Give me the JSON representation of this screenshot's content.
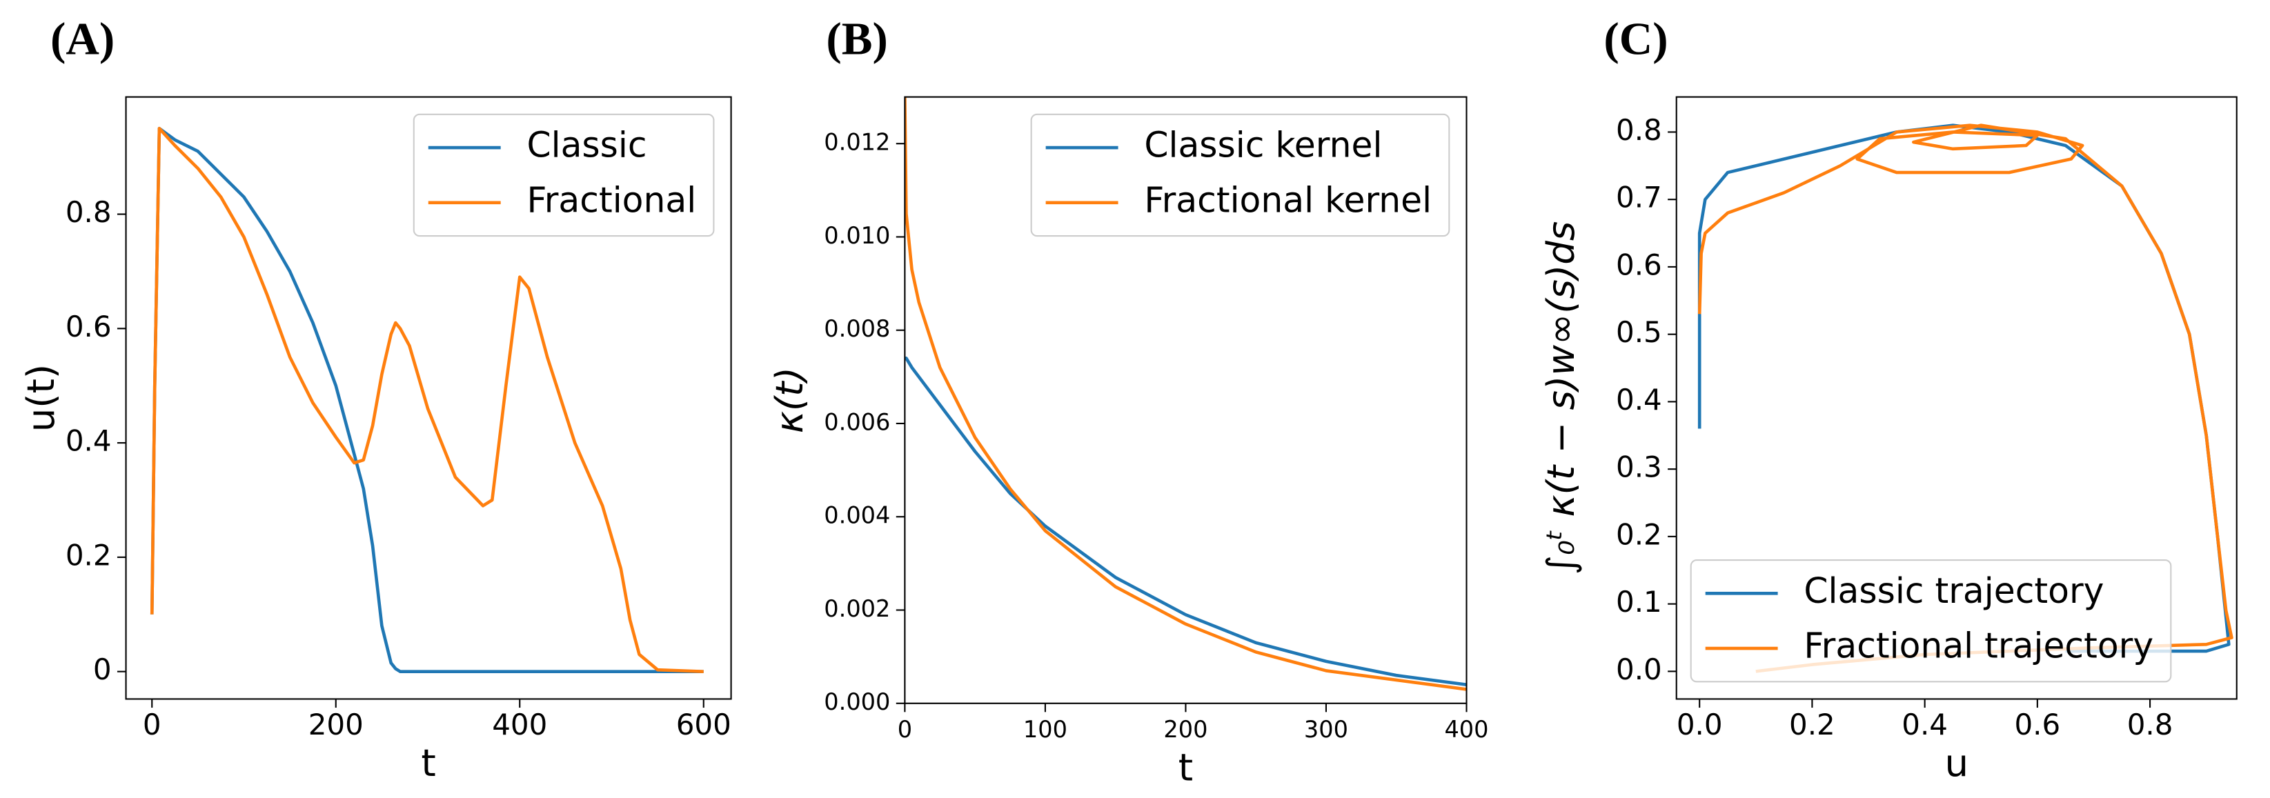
{
  "chart_data": [
    {
      "type": "line",
      "panel_label": "(A)",
      "xlabel": "t",
      "ylabel": "u(t)",
      "xlim": [
        -28.3,
        629.9
      ],
      "ylim": [
        -0.048,
        1.005
      ],
      "xticks": [
        0,
        200,
        400,
        600
      ],
      "yticks": [
        0,
        0.2,
        0.4,
        0.6,
        0.8
      ],
      "x": [
        0,
        3,
        8,
        25,
        50,
        75,
        100,
        125,
        150,
        175,
        200,
        220,
        230,
        240,
        250,
        260,
        265,
        270,
        280,
        300,
        330,
        360,
        370,
        385,
        400,
        410,
        430,
        460,
        490,
        510,
        520,
        530,
        550,
        600
      ],
      "series": [
        {
          "name": "Classic",
          "color": "#1f77b4",
          "values": [
            0.1,
            0.5,
            0.95,
            0.93,
            0.91,
            0.87,
            0.83,
            0.77,
            0.7,
            0.61,
            0.5,
            0.38,
            0.32,
            0.22,
            0.08,
            0.015,
            0.005,
            0,
            0,
            0,
            0,
            0,
            0,
            0,
            0,
            0,
            0,
            0,
            0,
            0,
            0,
            0,
            0,
            0
          ]
        },
        {
          "name": "Fractional",
          "color": "#ff7f0e",
          "values": [
            0.1,
            0.5,
            0.95,
            0.92,
            0.88,
            0.83,
            0.76,
            0.66,
            0.55,
            0.47,
            0.41,
            0.365,
            0.37,
            0.43,
            0.52,
            0.59,
            0.61,
            0.6,
            0.57,
            0.46,
            0.34,
            0.29,
            0.3,
            0.5,
            0.69,
            0.67,
            0.55,
            0.4,
            0.29,
            0.18,
            0.09,
            0.03,
            0.003,
            0
          ]
        }
      ],
      "legend": "upper right"
    },
    {
      "type": "line",
      "panel_label": "(B)",
      "xlabel": "t",
      "ylabel": "κ(t)",
      "xlim": [
        0,
        400
      ],
      "ylim": [
        0,
        0.013
      ],
      "xticks": [
        0,
        100,
        200,
        300,
        400
      ],
      "yticks": [
        {
          "value": 0,
          "label": "0.000"
        },
        0.002,
        0.004,
        0.006,
        0.008,
        {
          "value": 0.01,
          "label": "0.010"
        },
        0.012
      ],
      "x": [
        0,
        1,
        5,
        10,
        25,
        50,
        75,
        100,
        150,
        200,
        250,
        300,
        350,
        400
      ],
      "series": [
        {
          "name": "Classic kernel",
          "color": "#1f77b4",
          "values": [
            0.0074,
            0.0074,
            0.0072,
            0.007,
            0.0064,
            0.0054,
            0.0045,
            0.0038,
            0.0027,
            0.0019,
            0.0013,
            0.0009,
            0.0006,
            0.0004
          ]
        },
        {
          "name": "Fractional kernel",
          "color": "#ff7f0e",
          "values": [
            0.013,
            0.0105,
            0.0093,
            0.0086,
            0.0072,
            0.0057,
            0.0046,
            0.0037,
            0.0025,
            0.0017,
            0.0011,
            0.0007,
            0.0005,
            0.0003
          ]
        }
      ],
      "legend": "upper right"
    },
    {
      "type": "line",
      "panel_label": "(C)",
      "xlabel": "u",
      "ylabel": "∫₀ᵗ κ(t − s)w∞(s)ds",
      "xlim": [
        -0.041,
        0.954
      ],
      "ylim": [
        -0.041,
        0.852
      ],
      "xticks": [
        {
          "value": 0,
          "label": "0.0"
        },
        0.2,
        0.4,
        0.6,
        0.8
      ],
      "yticks": [
        {
          "value": 0,
          "label": "0.0"
        },
        0.1,
        0.2,
        0.3,
        0.4,
        0.5,
        0.6,
        0.7,
        0.8
      ],
      "series": [
        {
          "name": "Classic trajectory",
          "color": "#1f77b4",
          "x": [
            0,
            0,
            0.01,
            0.05,
            0.2,
            0.35,
            0.45,
            0.55,
            0.65,
            0.75,
            0.82,
            0.87,
            0.9,
            0.92,
            0.935,
            0.94,
            0.9,
            0.7,
            0.65
          ],
          "values": [
            0.36,
            0.65,
            0.7,
            0.74,
            0.77,
            0.8,
            0.81,
            0.8,
            0.78,
            0.72,
            0.62,
            0.5,
            0.35,
            0.2,
            0.08,
            0.04,
            0.03,
            0.03,
            0.03
          ]
        },
        {
          "name": "Fractional trajectory",
          "color": "#ff7f0e",
          "x": [
            0,
            0.003,
            0.01,
            0.05,
            0.15,
            0.25,
            0.35,
            0.48,
            0.6,
            0.68,
            0.66,
            0.55,
            0.35,
            0.28,
            0.32,
            0.45,
            0.6,
            0.58,
            0.45,
            0.38,
            0.5,
            0.65,
            0.75,
            0.82,
            0.87,
            0.9,
            0.92,
            0.935,
            0.945,
            0.9,
            0.7,
            0.4,
            0.2,
            0.1
          ],
          "values": [
            0.53,
            0.62,
            0.65,
            0.68,
            0.71,
            0.75,
            0.8,
            0.81,
            0.8,
            0.78,
            0.76,
            0.74,
            0.74,
            0.76,
            0.79,
            0.8,
            0.795,
            0.78,
            0.775,
            0.785,
            0.81,
            0.79,
            0.72,
            0.62,
            0.5,
            0.35,
            0.2,
            0.09,
            0.05,
            0.04,
            0.035,
            0.025,
            0.01,
            0
          ]
        }
      ],
      "legend": "lower left"
    }
  ]
}
